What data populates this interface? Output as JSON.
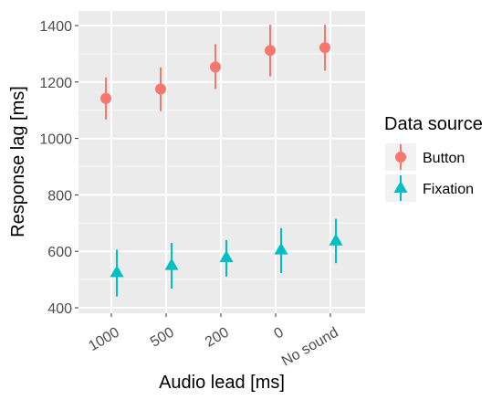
{
  "chart_data": {
    "type": "scatter",
    "xlabel": "Audio lead [ms]",
    "ylabel": "Response lag [ms]",
    "categories": [
      "1000",
      "500",
      "200",
      "0",
      "No sound"
    ],
    "ylim": [
      400,
      1400
    ],
    "yticks": [
      400,
      600,
      800,
      1000,
      1200,
      1400
    ],
    "grid": true,
    "legend_title": "Data source",
    "legend_position": "right",
    "series": [
      {
        "name": "Button",
        "color": "#F8766D",
        "marker": "circle",
        "values": [
          1142,
          1175,
          1253,
          1312,
          1322
        ],
        "lower": [
          1067,
          1097,
          1175,
          1220,
          1240
        ],
        "upper": [
          1216,
          1252,
          1334,
          1403,
          1403
        ]
      },
      {
        "name": "Fixation",
        "color": "#00BFC4",
        "marker": "triangle",
        "values": [
          525,
          550,
          578,
          605,
          637
        ],
        "lower": [
          440,
          468,
          510,
          523,
          558
        ],
        "upper": [
          606,
          630,
          640,
          682,
          715
        ]
      }
    ]
  }
}
